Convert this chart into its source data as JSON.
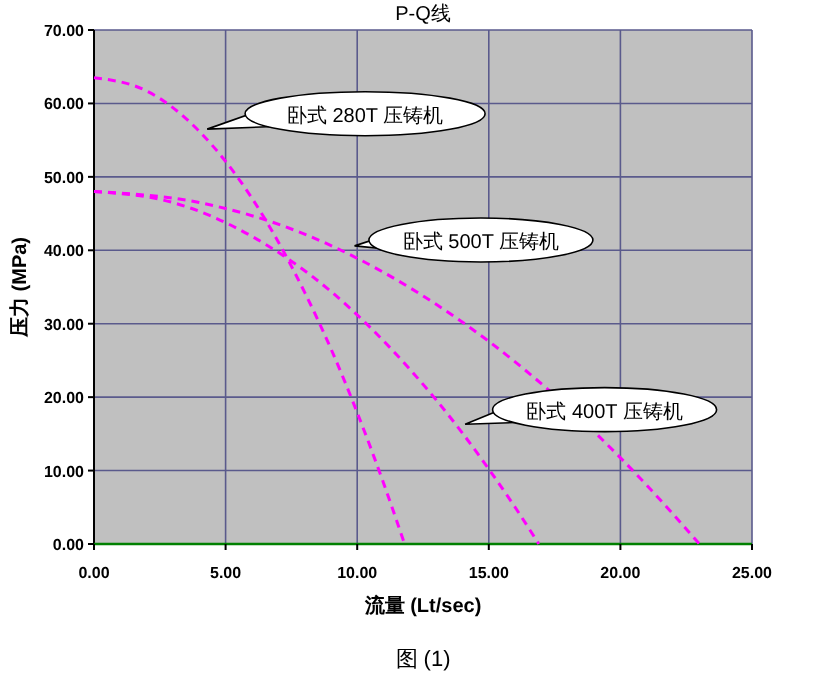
{
  "chart_data": {
    "type": "line",
    "title": "P-Q线",
    "xlabel": "流量 (Lt/sec)",
    "ylabel": "压力 (MPa)",
    "annotations": [
      "图 (1)"
    ],
    "xlim": [
      0,
      25
    ],
    "ylim": [
      0,
      70
    ],
    "xticks": [
      {
        "value": 0,
        "label": "0.00"
      },
      {
        "value": 5,
        "label": "5.00"
      },
      {
        "value": 10,
        "label": "10.00"
      },
      {
        "value": 15,
        "label": "15.00"
      },
      {
        "value": 20,
        "label": "20.00"
      },
      {
        "value": 25,
        "label": "25.00"
      }
    ],
    "yticks": [
      {
        "value": 0,
        "label": "0.00"
      },
      {
        "value": 10,
        "label": "10.00"
      },
      {
        "value": 20,
        "label": "20.00"
      },
      {
        "value": 30,
        "label": "30.00"
      },
      {
        "value": 40,
        "label": "40.00"
      },
      {
        "value": 50,
        "label": "50.00"
      },
      {
        "value": 60,
        "label": "60.00"
      },
      {
        "value": 70,
        "label": "70.00"
      }
    ],
    "grid": true,
    "marker": "none",
    "line_style": "dashed",
    "series": [
      {
        "name": "卧式 280T 压铸机",
        "color": "#ff00ff",
        "x": [
          0,
          2,
          4,
          6,
          8,
          9,
          10,
          11,
          11.8
        ],
        "values": [
          63.5,
          61.7,
          56.2,
          47.1,
          34.3,
          26.6,
          17.9,
          8.3,
          0
        ]
      },
      {
        "name": "卧式 500T 压铸机",
        "color": "#ff00ff",
        "x": [
          0,
          4,
          8,
          12,
          16,
          19,
          21,
          23
        ],
        "values": [
          48,
          46.5,
          42.2,
          34.9,
          24.8,
          15.3,
          8,
          0
        ]
      },
      {
        "name": "卧式 400T 压铸机",
        "color": "#ff00ff",
        "x": [
          0,
          3,
          6,
          9,
          12,
          14,
          15,
          16,
          16.9
        ],
        "values": [
          48,
          46.5,
          41.9,
          34.4,
          23.8,
          15.1,
          10.2,
          5,
          0
        ]
      }
    ]
  }
}
